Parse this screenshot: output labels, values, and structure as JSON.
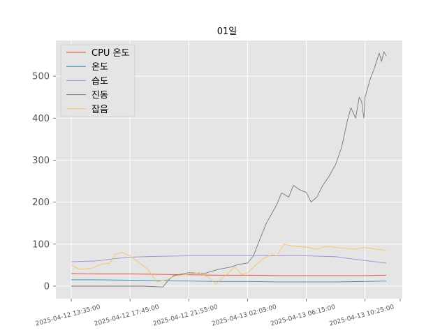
{
  "chart_data": {
    "type": "line",
    "title": "01일",
    "xlabel": "",
    "ylabel": "",
    "ylim": [
      -30,
      585
    ],
    "yticks": [
      0,
      100,
      200,
      300,
      400,
      500
    ],
    "xtick_labels": [
      "2025-04-12 13:35:00",
      "2025-04-12 17:45:00",
      "2025-04-12 21:55:00",
      "2025-04-13 02:05:00",
      "2025-04-13 06:15:00",
      "2025-04-13 10:25:00"
    ],
    "x_start": "2025-04-12 13:35:00",
    "x_end": "2025-04-13 11:55:00",
    "grid": true,
    "legend_position": "top-left",
    "series": [
      {
        "name": "CPU 온도",
        "color": "#e24a33",
        "points": [
          [
            "2025-04-12 13:35:00",
            30
          ],
          [
            "2025-04-12 15:30:00",
            29
          ],
          [
            "2025-04-12 17:45:00",
            29
          ],
          [
            "2025-04-12 19:50:00",
            28
          ],
          [
            "2025-04-12 21:55:00",
            27
          ],
          [
            "2025-04-13 00:00:00",
            26
          ],
          [
            "2025-04-13 02:05:00",
            26
          ],
          [
            "2025-04-13 04:10:00",
            25
          ],
          [
            "2025-04-13 06:15:00",
            25
          ],
          [
            "2025-04-13 08:20:00",
            25
          ],
          [
            "2025-04-13 10:25:00",
            25
          ],
          [
            "2025-04-13 11:55:00",
            26
          ]
        ]
      },
      {
        "name": "온도",
        "color": "#348abd",
        "points": [
          [
            "2025-04-12 13:35:00",
            15
          ],
          [
            "2025-04-12 15:30:00",
            15
          ],
          [
            "2025-04-12 17:45:00",
            14
          ],
          [
            "2025-04-12 19:50:00",
            13
          ],
          [
            "2025-04-12 21:55:00",
            12
          ],
          [
            "2025-04-13 00:00:00",
            11
          ],
          [
            "2025-04-13 02:05:00",
            11
          ],
          [
            "2025-04-13 04:10:00",
            10
          ],
          [
            "2025-04-13 06:15:00",
            10
          ],
          [
            "2025-04-13 08:20:00",
            10
          ],
          [
            "2025-04-13 10:25:00",
            11
          ],
          [
            "2025-04-13 11:55:00",
            12
          ]
        ]
      },
      {
        "name": "습도",
        "color": "#988ed5",
        "points": [
          [
            "2025-04-12 13:35:00",
            58
          ],
          [
            "2025-04-12 15:20:00",
            60
          ],
          [
            "2025-04-12 16:50:00",
            66
          ],
          [
            "2025-04-12 17:45:00",
            69
          ],
          [
            "2025-04-12 19:50:00",
            71
          ],
          [
            "2025-04-12 21:55:00",
            72
          ],
          [
            "2025-04-13 00:00:00",
            72
          ],
          [
            "2025-04-13 02:05:00",
            72
          ],
          [
            "2025-04-13 04:10:00",
            72
          ],
          [
            "2025-04-13 06:15:00",
            72
          ],
          [
            "2025-04-13 08:20:00",
            70
          ],
          [
            "2025-04-13 09:40:00",
            64
          ],
          [
            "2025-04-13 10:25:00",
            61
          ],
          [
            "2025-04-13 11:55:00",
            55
          ]
        ]
      },
      {
        "name": "진동",
        "color": "#777777",
        "points": [
          [
            "2025-04-12 13:35:00",
            0
          ],
          [
            "2025-04-12 17:45:00",
            0
          ],
          [
            "2025-04-12 18:45:00",
            0
          ],
          [
            "2025-04-12 20:05:00",
            -2
          ],
          [
            "2025-04-12 20:25:00",
            12
          ],
          [
            "2025-04-12 20:50:00",
            25
          ],
          [
            "2025-04-12 21:55:00",
            32
          ],
          [
            "2025-04-12 23:00:00",
            30
          ],
          [
            "2025-04-13 00:00:00",
            40
          ],
          [
            "2025-04-13 00:50:00",
            45
          ],
          [
            "2025-04-13 01:30:00",
            52
          ],
          [
            "2025-04-13 02:05:00",
            55
          ],
          [
            "2025-04-13 02:30:00",
            72
          ],
          [
            "2025-04-13 03:00:00",
            115
          ],
          [
            "2025-04-13 03:25:00",
            150
          ],
          [
            "2025-04-13 03:50:00",
            175
          ],
          [
            "2025-04-13 04:10:00",
            195
          ],
          [
            "2025-04-13 04:30:00",
            222
          ],
          [
            "2025-04-13 05:00:00",
            212
          ],
          [
            "2025-04-13 05:20:00",
            240
          ],
          [
            "2025-04-13 05:45:00",
            230
          ],
          [
            "2025-04-13 06:15:00",
            223
          ],
          [
            "2025-04-13 06:35:00",
            200
          ],
          [
            "2025-04-13 07:00:00",
            212
          ],
          [
            "2025-04-13 07:25:00",
            240
          ],
          [
            "2025-04-13 07:50:00",
            260
          ],
          [
            "2025-04-13 08:20:00",
            290
          ],
          [
            "2025-04-13 08:45:00",
            330
          ],
          [
            "2025-04-13 09:10:00",
            395
          ],
          [
            "2025-04-13 09:25:00",
            425
          ],
          [
            "2025-04-13 09:45:00",
            400
          ],
          [
            "2025-04-13 10:00:00",
            450
          ],
          [
            "2025-04-13 10:10:00",
            440
          ],
          [
            "2025-04-13 10:20:00",
            400
          ],
          [
            "2025-04-13 10:25:00",
            450
          ],
          [
            "2025-04-13 10:45:00",
            490
          ],
          [
            "2025-04-13 11:05:00",
            520
          ],
          [
            "2025-04-13 11:25:00",
            555
          ],
          [
            "2025-04-13 11:35:00",
            535
          ],
          [
            "2025-04-13 11:45:00",
            558
          ],
          [
            "2025-04-13 11:55:00",
            548
          ]
        ]
      },
      {
        "name": "잡음",
        "color": "#fbc15e",
        "points": [
          [
            "2025-04-12 13:35:00",
            50
          ],
          [
            "2025-04-12 14:10:00",
            40
          ],
          [
            "2025-04-12 15:00:00",
            42
          ],
          [
            "2025-04-12 15:40:00",
            52
          ],
          [
            "2025-04-12 16:20:00",
            55
          ],
          [
            "2025-04-12 16:40:00",
            75
          ],
          [
            "2025-04-12 17:10:00",
            80
          ],
          [
            "2025-04-12 17:45:00",
            72
          ],
          [
            "2025-04-12 18:20:00",
            58
          ],
          [
            "2025-04-12 19:00:00",
            40
          ],
          [
            "2025-04-12 19:40:00",
            10
          ],
          [
            "2025-04-12 20:20:00",
            15
          ],
          [
            "2025-04-12 21:00:00",
            25
          ],
          [
            "2025-04-12 21:55:00",
            28
          ],
          [
            "2025-04-12 22:40:00",
            32
          ],
          [
            "2025-04-12 23:20:00",
            20
          ],
          [
            "2025-04-12 23:50:00",
            5
          ],
          [
            "2025-04-13 00:30:00",
            25
          ],
          [
            "2025-04-13 01:10:00",
            45
          ],
          [
            "2025-04-13 01:40:00",
            28
          ],
          [
            "2025-04-13 02:05:00",
            32
          ],
          [
            "2025-04-13 02:40:00",
            50
          ],
          [
            "2025-04-13 03:10:00",
            65
          ],
          [
            "2025-04-13 03:50:00",
            75
          ],
          [
            "2025-04-13 04:10:00",
            72
          ],
          [
            "2025-04-13 04:40:00",
            100
          ],
          [
            "2025-04-13 05:20:00",
            95
          ],
          [
            "2025-04-13 06:15:00",
            93
          ],
          [
            "2025-04-13 07:00:00",
            88
          ],
          [
            "2025-04-13 07:40:00",
            95
          ],
          [
            "2025-04-13 08:20:00",
            92
          ],
          [
            "2025-04-13 09:00:00",
            90
          ],
          [
            "2025-04-13 09:40:00",
            88
          ],
          [
            "2025-04-13 10:25:00",
            92
          ],
          [
            "2025-04-13 11:10:00",
            88
          ],
          [
            "2025-04-13 11:55:00",
            85
          ]
        ]
      }
    ]
  }
}
